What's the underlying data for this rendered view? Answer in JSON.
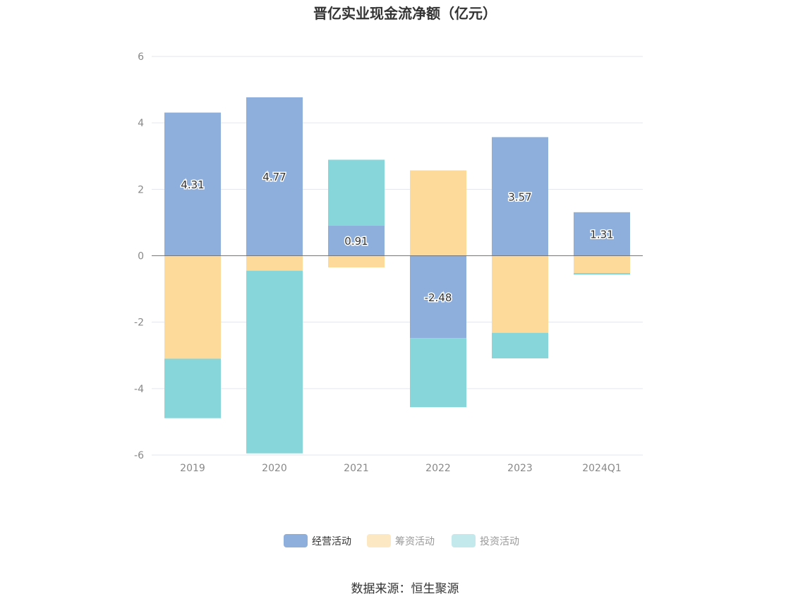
{
  "chart_data": {
    "type": "bar",
    "stacked": true,
    "title": "晋亿实业现金流净额（亿元）",
    "categories": [
      "2019",
      "2020",
      "2021",
      "2022",
      "2023",
      "2024Q1"
    ],
    "ylim": [
      -6,
      6
    ],
    "yticks": [
      6,
      4,
      2,
      0,
      -2,
      -4,
      -6
    ],
    "grid": true,
    "legend_position": "bottom",
    "series": [
      {
        "name": "经营活动",
        "color": "#8eaedb",
        "values": [
          4.31,
          4.77,
          0.91,
          -2.48,
          3.57,
          1.31
        ],
        "labels": [
          "4.31",
          "4.77",
          "0.91",
          "-2.48",
          "3.57",
          "1.31"
        ]
      },
      {
        "name": "筹资活动",
        "color": "#fdd99a",
        "values": [
          -3.1,
          -0.45,
          -0.35,
          2.57,
          -2.32,
          -0.52
        ]
      },
      {
        "name": "投资活动",
        "color": "#87d6da",
        "values": [
          -1.79,
          -5.5,
          1.98,
          -2.08,
          -0.77,
          -0.05
        ]
      }
    ],
    "legend_text_colors": [
      "#333333",
      "#999999",
      "#999999"
    ],
    "source": "数据来源：恒生聚源"
  }
}
